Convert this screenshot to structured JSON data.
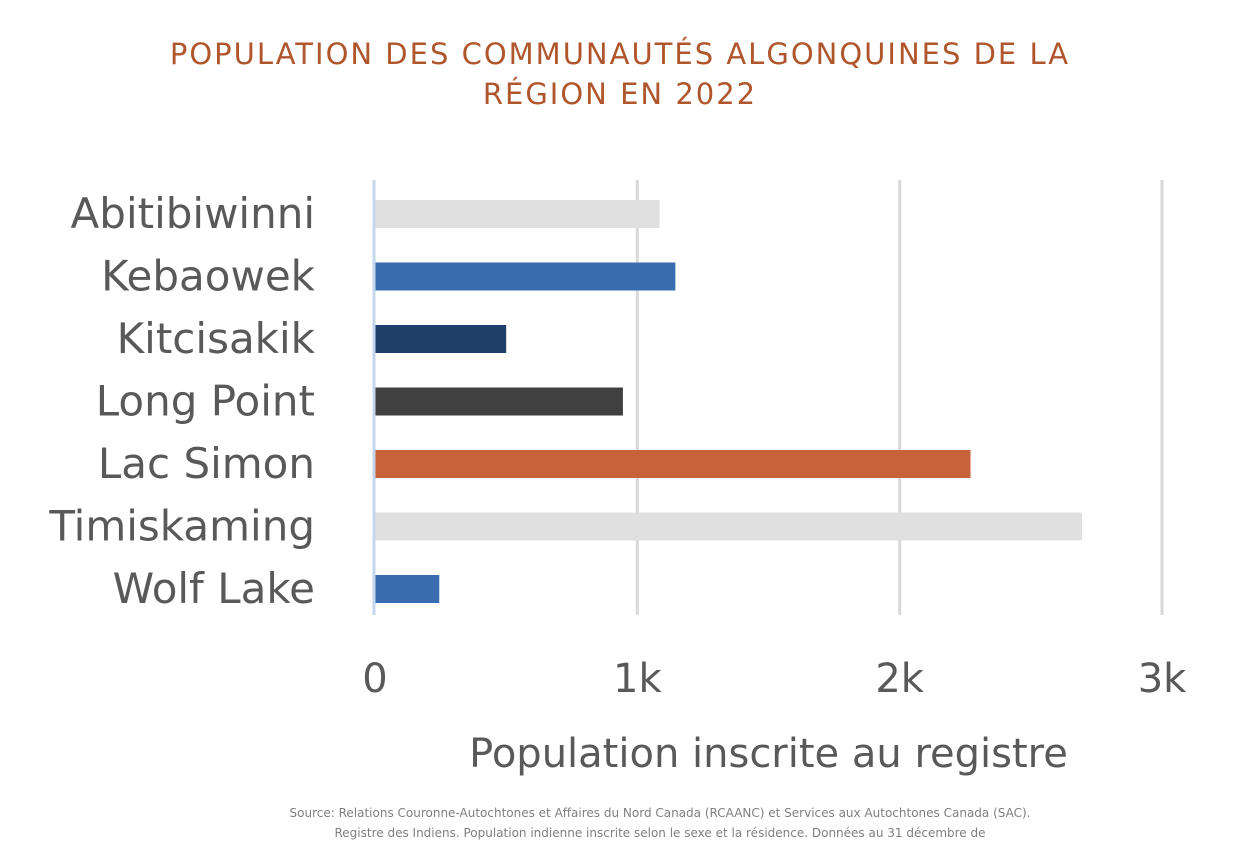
{
  "chart_data": {
    "type": "bar",
    "orientation": "horizontal",
    "title": "POPULATION DES COMMUNAUTÉS ALGONQUINES DE LA RÉGION EN 2022",
    "xlabel": "Population inscrite au registre",
    "ylabel": "",
    "xlim": [
      0,
      3000
    ],
    "x_ticks": [
      {
        "value": 0,
        "label": "0"
      },
      {
        "value": 1000,
        "label": "1k"
      },
      {
        "value": 2000,
        "label": "2k"
      },
      {
        "value": 3000,
        "label": "3k"
      }
    ],
    "grid": true,
    "legend": "none",
    "categories": [
      "Abitibiwinni",
      "Kebaowek",
      "Kitcisakik",
      "Long Point",
      "Lac Simon",
      "Timiskaming",
      "Wolf Lake"
    ],
    "values": [
      1085,
      1145,
      500,
      945,
      2270,
      2695,
      245
    ],
    "bar_colors": [
      "#e0e0e0",
      "#3a6db0",
      "#1f3f6b",
      "#404041",
      "#c8623a",
      "#e0e0e0",
      "#3a6db0"
    ]
  },
  "source_lines": [
    "Source: Relations Couronne-Autochtones et Affaires du Nord Canada (RCAANC) et Services aux Autochtones Canada (SAC).",
    "Registre des Indiens. Population indienne inscrite selon le sexe et la résidence. Données au 31 décembre de"
  ],
  "colors": {
    "title": "#b0562d",
    "label_text": "#595959",
    "gridline": "#d9d9d9",
    "axis_line": "#c5d6ec",
    "source_text": "#7f7f7f"
  }
}
